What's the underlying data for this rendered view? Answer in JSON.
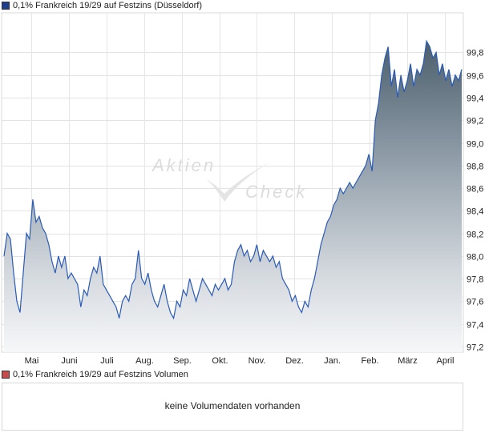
{
  "legend_price": {
    "label": "0,1% Frankreich 19/29 auf Festzins (Düsseldorf)",
    "color": "#1f3f8f"
  },
  "legend_volume": {
    "label": "0,1% Frankreich 19/29 auf Festzins Volumen",
    "color": "#c94a4a"
  },
  "volume": {
    "message": "keine Volumendaten vorhanden"
  },
  "watermark": {
    "line1": "Aktien",
    "line2": "Check"
  },
  "chart_data": {
    "type": "area",
    "y_ticks": [
      "99,8",
      "99,6",
      "99,4",
      "99,2",
      "99,0",
      "98,8",
      "98,6",
      "98,4",
      "98,2",
      "98,0",
      "97,8",
      "97,6",
      "97,4",
      "97,2"
    ],
    "x_ticks": [
      "Mai",
      "Juni",
      "Juli",
      "Aug.",
      "Sep.",
      "Okt.",
      "Nov.",
      "Dez.",
      "Jan.",
      "Feb.",
      "März",
      "April"
    ],
    "ylim": [
      97.15,
      100.15
    ],
    "grid": true,
    "series": [
      {
        "values": [
          98.0,
          98.2,
          98.15,
          97.85,
          97.6,
          97.5,
          97.85,
          98.2,
          98.15,
          98.5,
          98.3,
          98.35,
          98.25,
          98.2,
          98.1,
          97.95,
          97.85,
          98.0,
          97.9,
          98.0,
          97.8,
          97.85,
          97.8,
          97.75,
          97.55,
          97.7,
          97.65,
          97.8,
          97.9,
          97.85,
          98.0,
          97.75,
          97.7,
          97.65,
          97.6,
          97.55,
          97.45,
          97.6,
          97.65,
          97.6,
          97.75,
          97.8,
          98.05,
          97.8,
          97.75,
          97.85,
          97.7,
          97.6,
          97.55,
          97.65,
          97.75,
          97.6,
          97.5,
          97.45,
          97.6,
          97.55,
          97.7,
          97.65,
          97.8,
          97.7,
          97.6,
          97.7,
          97.8,
          97.75,
          97.7,
          97.65,
          97.75,
          97.7,
          97.75,
          97.8,
          97.7,
          97.75,
          97.95,
          98.05,
          98.1,
          98.0,
          98.05,
          97.95,
          98.0,
          98.1,
          97.95,
          98.05,
          98.0,
          97.95,
          98.0,
          97.9,
          97.95,
          97.8,
          97.75,
          97.7,
          97.6,
          97.65,
          97.55,
          97.5,
          97.6,
          97.55,
          97.7,
          97.8,
          97.95,
          98.1,
          98.2,
          98.3,
          98.35,
          98.45,
          98.5,
          98.6,
          98.55,
          98.6,
          98.65,
          98.6,
          98.65,
          98.7,
          98.75,
          98.8,
          98.9,
          98.75,
          99.2,
          99.35,
          99.6,
          99.75,
          99.85,
          99.5,
          99.65,
          99.4,
          99.6,
          99.45,
          99.55,
          99.7,
          99.5,
          99.65,
          99.6,
          99.7,
          99.9,
          99.85,
          99.75,
          99.8,
          99.6,
          99.7,
          99.55,
          99.65,
          99.5,
          99.6,
          99.55,
          99.65
        ]
      }
    ]
  }
}
